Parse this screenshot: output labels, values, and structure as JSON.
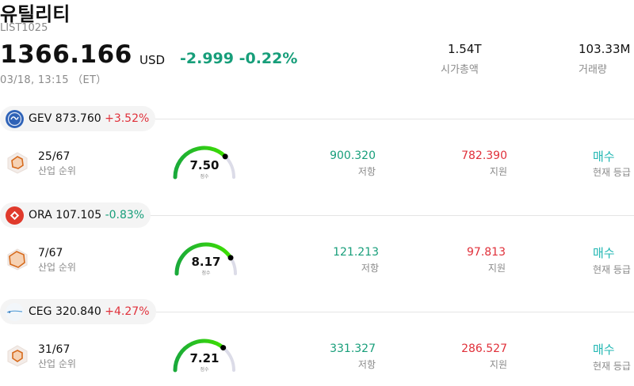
{
  "header": {
    "title": "유틸리티",
    "symbol": "LIST1025",
    "price": "1366.166",
    "currency": "USD",
    "change": "-2.999",
    "change_pct": "-0.22%",
    "timestamp": "03/18, 13:15 （ET）"
  },
  "stats": [
    {
      "value": "1.54T",
      "label": "시가총액"
    },
    {
      "value": "103.33M",
      "label": "거래량"
    }
  ],
  "stocks": [
    {
      "ticker": "GEV",
      "price": "873.760",
      "change": "+3.52%",
      "direction": "up",
      "logo_icon": "ge-vernova-logo-icon",
      "logo_color": "#3a6fc4",
      "rank": "25/67",
      "rank_label": "산업 순위",
      "score": "7.50",
      "score_fraction": 0.75,
      "score_label": "점수",
      "resistance": "900.320",
      "resistance_label": "저항",
      "support": "782.390",
      "support_label": "지원",
      "rating": "매수",
      "rating_label": "현재 등급"
    },
    {
      "ticker": "ORA",
      "price": "107.105",
      "change": "-0.83%",
      "direction": "down",
      "logo_icon": "ormat-logo-icon",
      "logo_color": "#e03a2c",
      "rank": "7/67",
      "rank_label": "산업 순위",
      "score": "8.17",
      "score_fraction": 0.817,
      "score_label": "점수",
      "resistance": "121.213",
      "resistance_label": "저항",
      "support": "97.813",
      "support_label": "지원",
      "rating": "매수",
      "rating_label": "현재 등급"
    },
    {
      "ticker": "CEG",
      "price": "320.840",
      "change": "+4.27%",
      "direction": "up",
      "logo_icon": "constellation-logo-icon",
      "logo_color": "#5aa0d8",
      "rank": "31/67",
      "rank_label": "산업 순위",
      "score": "7.21",
      "score_fraction": 0.721,
      "score_label": "점수",
      "resistance": "331.327",
      "resistance_label": "저항",
      "support": "286.527",
      "support_label": "지원",
      "rating": "매수",
      "rating_label": "현재 등급"
    }
  ],
  "colors": {
    "up": "#e0303a",
    "down": "#179e7a",
    "rating": "#1fb6b2",
    "gauge_track": "#dcdce8",
    "gauge_fill_start": "#1aaa3a",
    "gauge_fill_end": "#3ee000"
  }
}
